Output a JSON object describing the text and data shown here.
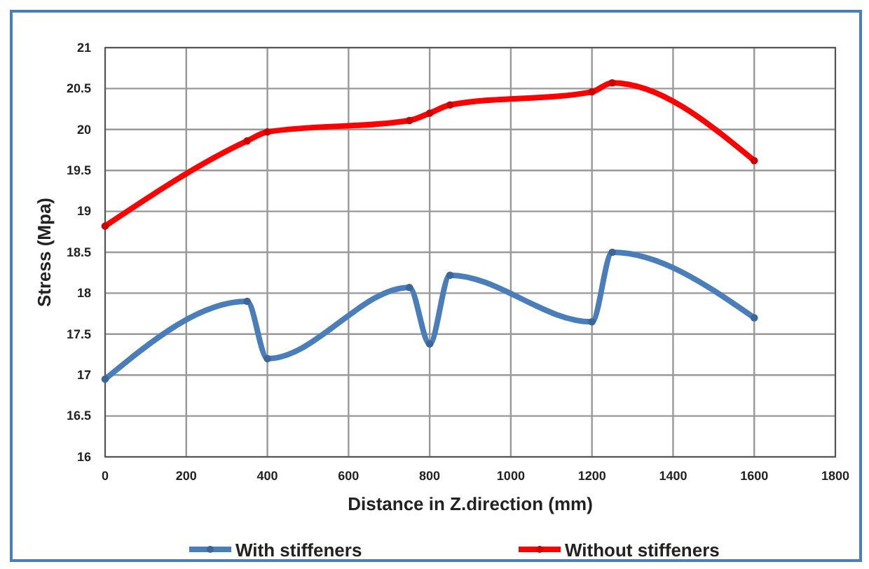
{
  "chart_data": {
    "type": "line",
    "xlabel": "Distance in Z.direction (mm)",
    "ylabel": "Stress (Mpa)",
    "x": [
      0,
      350,
      400,
      750,
      800,
      850,
      1200,
      1250,
      1600
    ],
    "series": [
      {
        "name": "With stiffeners",
        "color": "#4a7ebb",
        "values": [
          16.95,
          17.9,
          17.2,
          18.07,
          17.38,
          18.22,
          17.65,
          18.5,
          17.7
        ]
      },
      {
        "name": "Without stiffeners",
        "color": "#ff0000",
        "values": [
          18.82,
          19.86,
          19.97,
          20.11,
          20.2,
          20.3,
          20.46,
          20.57,
          19.62
        ]
      }
    ],
    "xlim": [
      0,
      1800
    ],
    "xticks": [
      0,
      200,
      400,
      600,
      800,
      1000,
      1200,
      1400,
      1600,
      1800
    ],
    "ylim": [
      16,
      21
    ],
    "yticks": [
      16,
      16.5,
      17,
      17.5,
      18,
      18.5,
      19,
      19.5,
      20,
      20.5,
      21
    ],
    "grid": true,
    "legend": "bottom",
    "marker": "circle",
    "line_style": "solid"
  }
}
